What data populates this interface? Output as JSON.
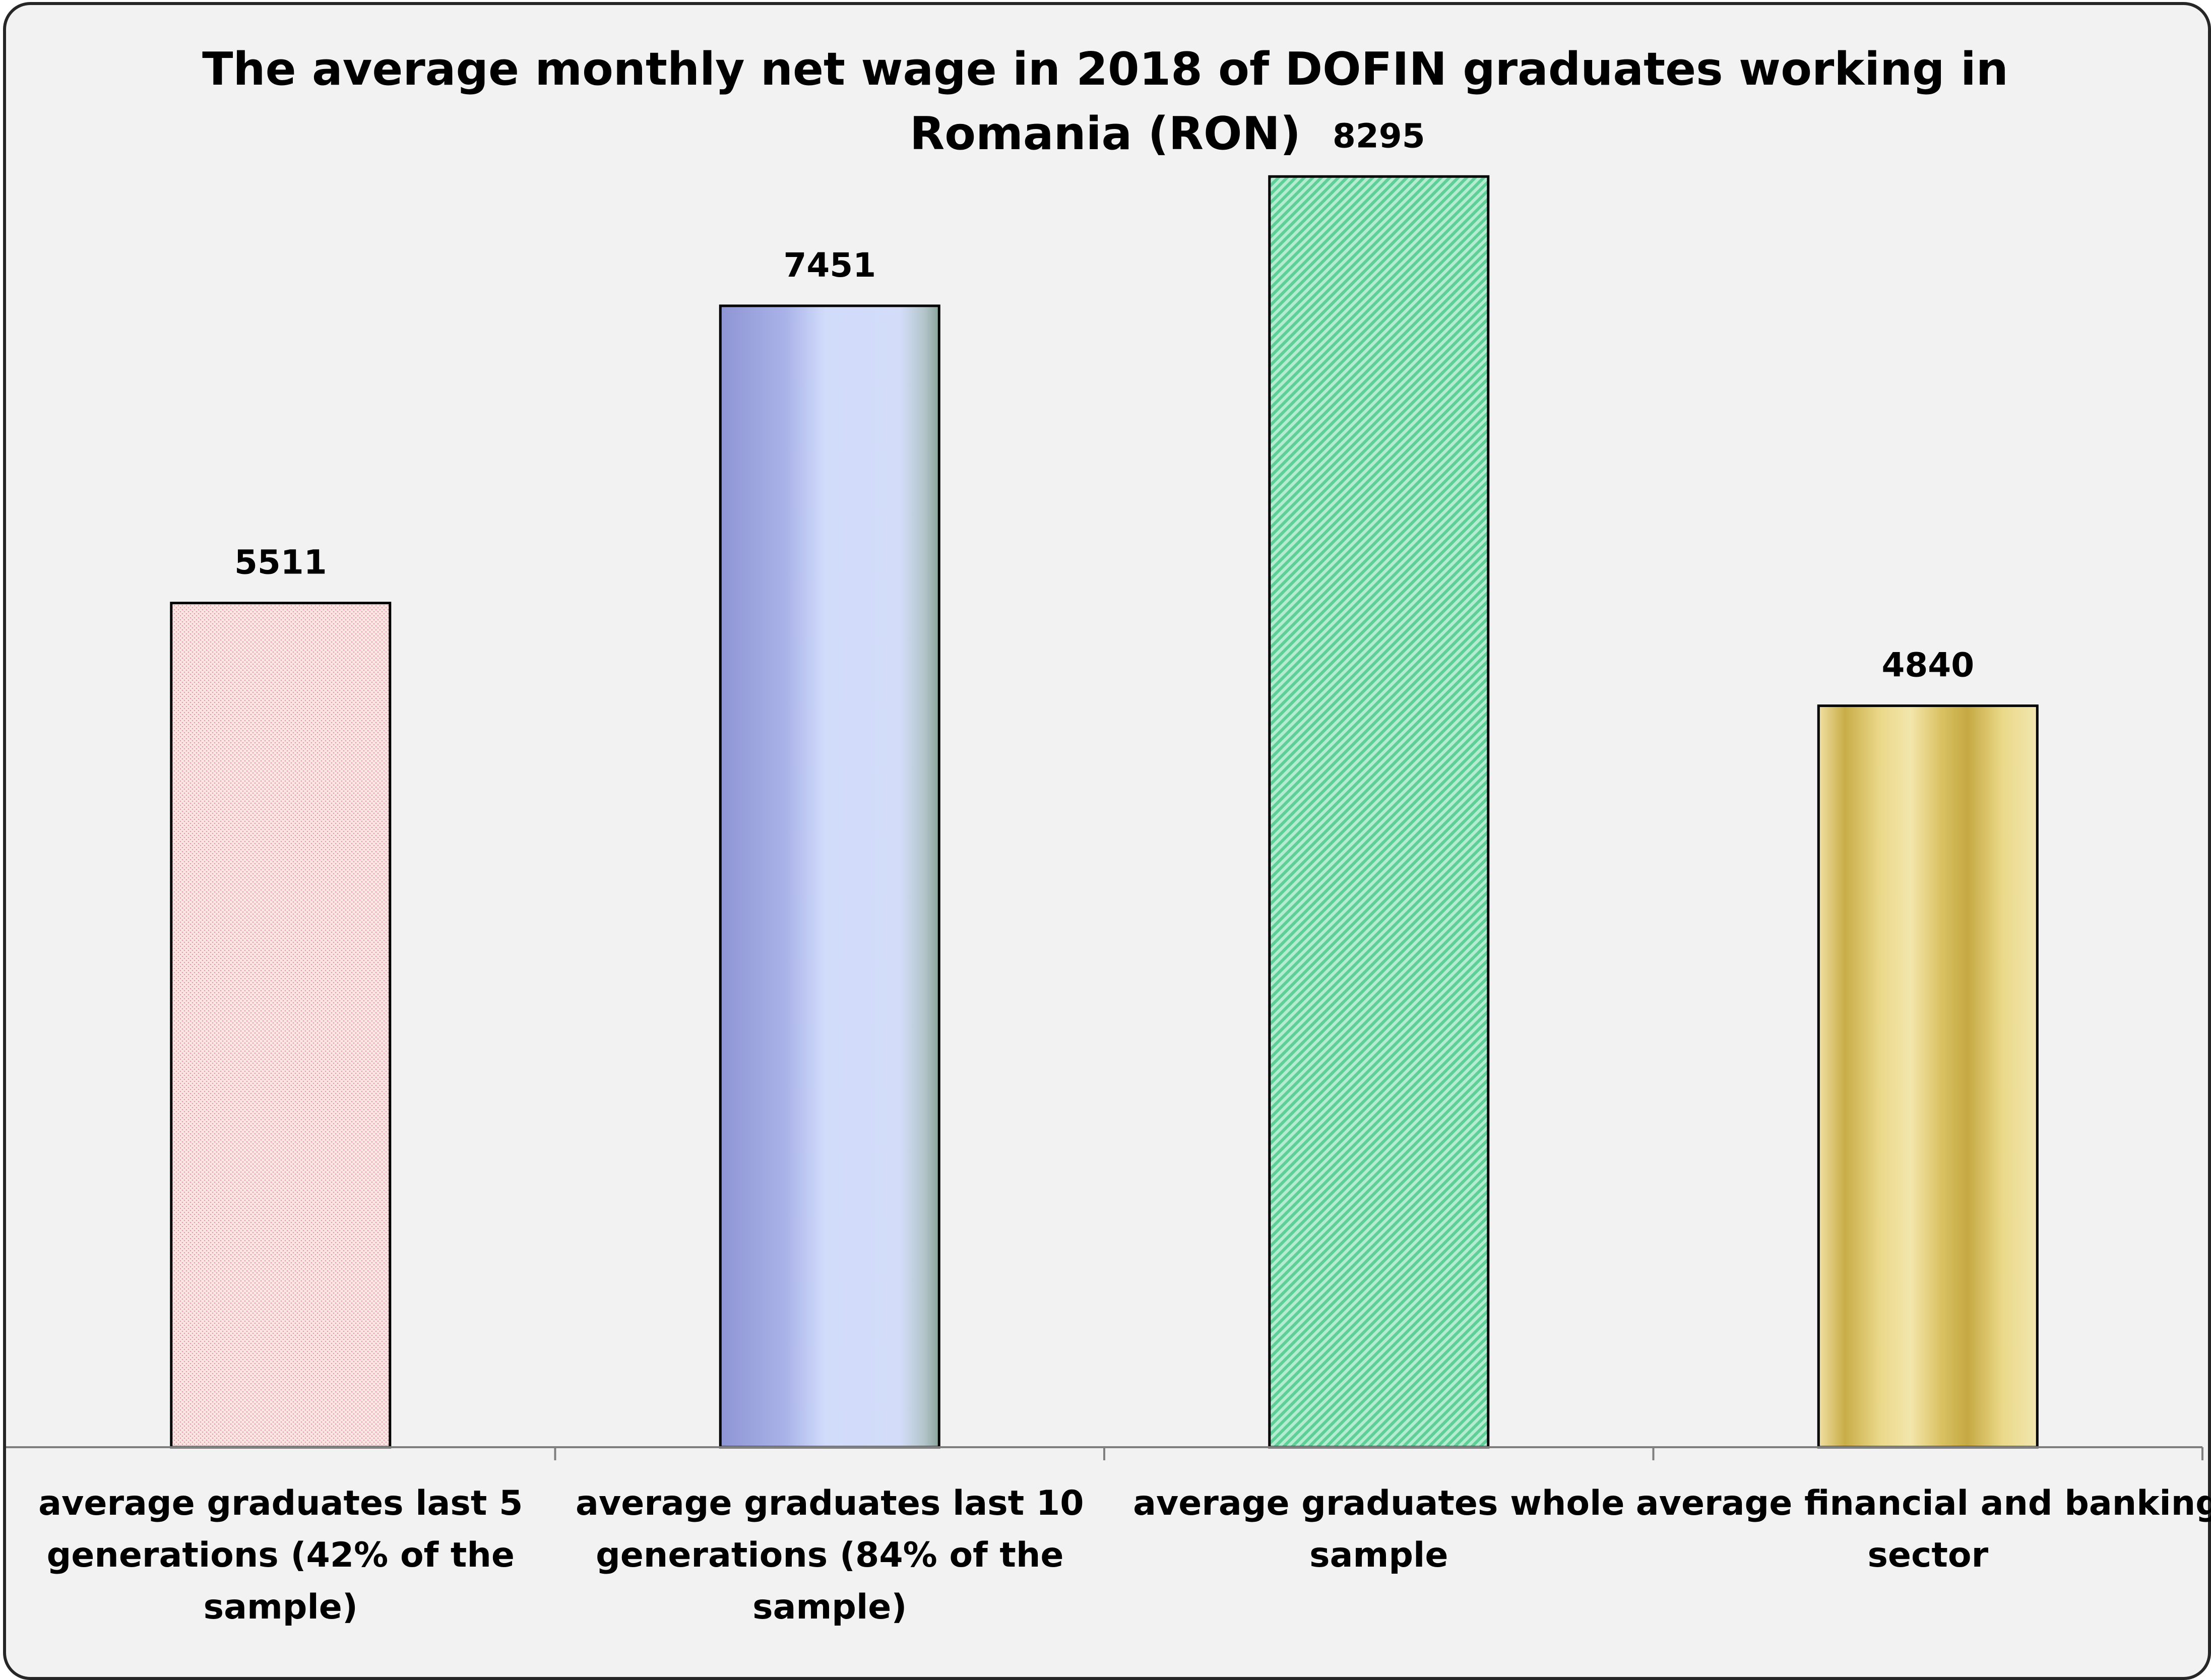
{
  "chart_data": {
    "type": "bar",
    "title": "The average monthly net wage in 2018 of DOFIN graduates working in Romania (RON)",
    "title_lines": [
      "The average monthly net wage in 2018 of DOFIN graduates working in",
      "Romania (RON)"
    ],
    "categories": [
      "average graduates last 5 generations (42% of the sample)",
      "average graduates last 10 generations (84% of the sample)",
      "average graduates whole sample",
      "average financial and banking sector"
    ],
    "category_lines": [
      [
        "average graduates last 5",
        "generations (42% of the",
        "sample)"
      ],
      [
        "average graduates last 10",
        "generations (84% of the",
        "sample)"
      ],
      [
        "average graduates whole",
        "sample"
      ],
      [
        "average financial and banking",
        "sector"
      ]
    ],
    "values": [
      5511,
      7451,
      8295,
      4840
    ],
    "value_labels": [
      "5511",
      "7451",
      "8295",
      "4840"
    ],
    "ylim": [
      0,
      9000
    ],
    "xlabel": "",
    "ylabel": "",
    "grid": false,
    "legend": "none",
    "colors": {
      "background": "#f2f2f2",
      "border": "#262626",
      "bar_outline": "#000000",
      "bar1_pink": "#f4c7c7",
      "bar2_blue": "#9aa3dd",
      "bar3_green": "#79d8ae",
      "bar4_gold": "#c9ae4d"
    }
  }
}
